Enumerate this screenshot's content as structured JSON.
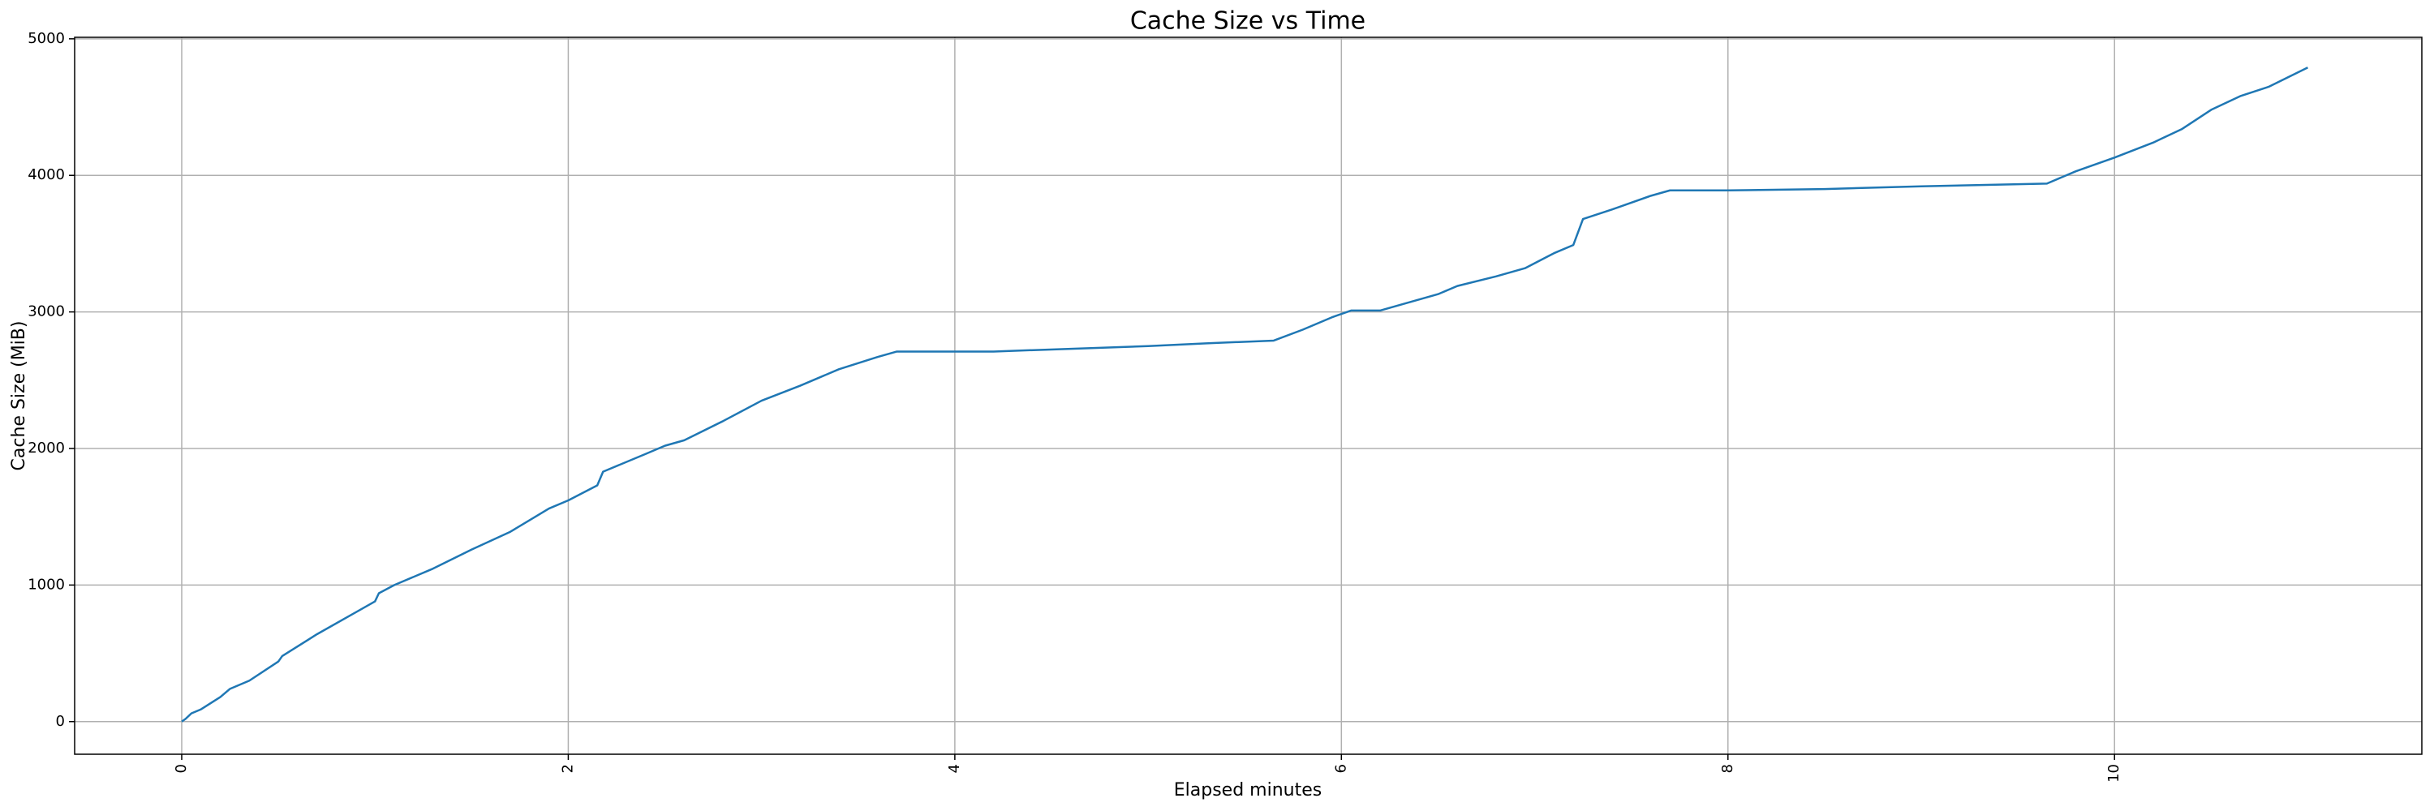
{
  "chart_data": {
    "type": "line",
    "title": "Cache Size vs Time",
    "x_label": "Elapsed minutes",
    "y_label": "Cache Size (MiB)",
    "x": [
      0,
      0.02,
      0.05,
      0.1,
      0.2,
      0.25,
      0.35,
      0.5,
      0.52,
      0.7,
      0.9,
      1.0,
      1.02,
      1.1,
      1.3,
      1.5,
      1.7,
      1.9,
      2.0,
      2.15,
      2.18,
      2.4,
      2.5,
      2.6,
      2.8,
      3.0,
      3.2,
      3.3,
      3.4,
      3.6,
      3.7,
      4.2,
      4.6,
      5.0,
      5.3,
      5.65,
      5.8,
      5.95,
      6.05,
      6.2,
      6.3,
      6.5,
      6.6,
      6.8,
      6.95,
      7.1,
      7.2,
      7.25,
      7.4,
      7.6,
      7.7,
      8.0,
      8.5,
      9.0,
      9.65,
      9.8,
      10.0,
      10.2,
      10.35,
      10.5,
      10.65,
      10.8,
      11.0
    ],
    "values": [
      0,
      20,
      60,
      90,
      180,
      240,
      300,
      440,
      480,
      640,
      800,
      880,
      940,
      1000,
      1120,
      1260,
      1390,
      1560,
      1620,
      1730,
      1830,
      1960,
      2020,
      2060,
      2200,
      2350,
      2460,
      2520,
      2580,
      2670,
      2710,
      2710,
      2730,
      2750,
      2770,
      2790,
      2870,
      2960,
      3010,
      3010,
      3050,
      3130,
      3190,
      3260,
      3320,
      3430,
      3490,
      3680,
      3750,
      3850,
      3890,
      3890,
      3900,
      3920,
      3940,
      4030,
      4130,
      4240,
      4340,
      4480,
      4580,
      4650,
      4790
    ],
    "color": "#1f77b4",
    "xlim": [
      -0.554,
      11.59
    ],
    "xticks": [
      0,
      2,
      4,
      6,
      8,
      10
    ],
    "ylim": [
      -239,
      5011
    ],
    "yticks": [
      0,
      1000,
      2000,
      3000,
      4000,
      5000
    ],
    "grid": true
  }
}
